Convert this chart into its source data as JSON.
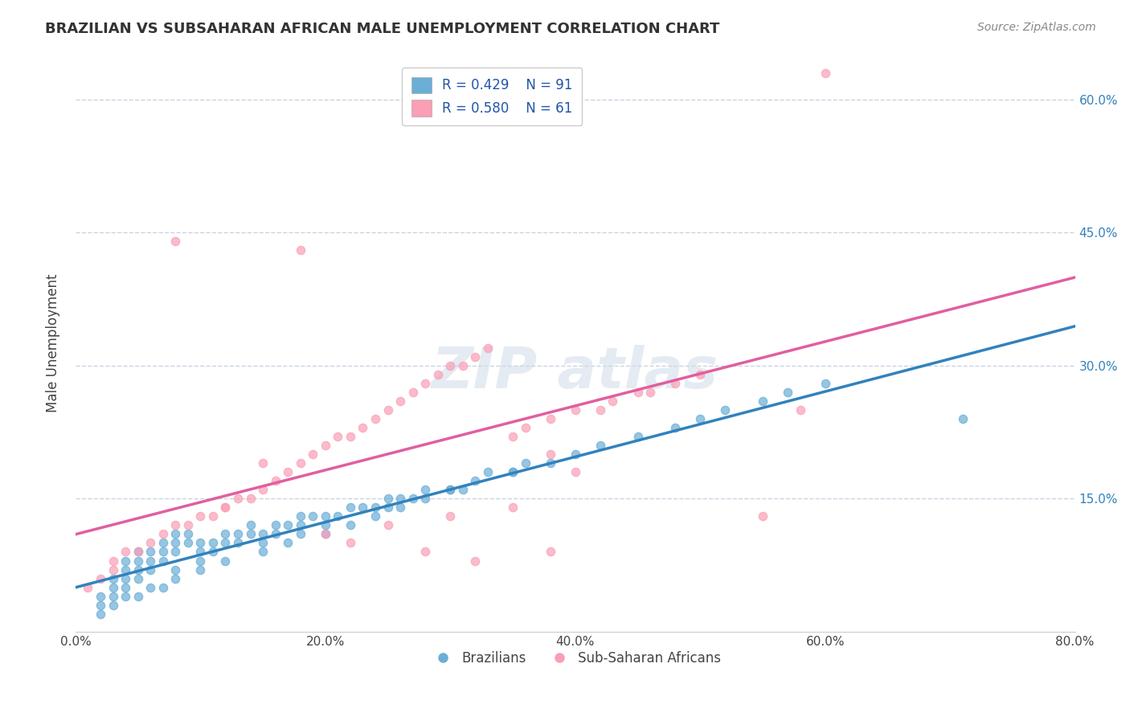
{
  "title": "BRAZILIAN VS SUBSAHARAN AFRICAN MALE UNEMPLOYMENT CORRELATION CHART",
  "source": "Source: ZipAtlas.com",
  "xlabel": "",
  "ylabel": "Male Unemployment",
  "xlim": [
    0.0,
    0.8
  ],
  "ylim": [
    0.0,
    0.65
  ],
  "xticks": [
    0.0,
    0.2,
    0.4,
    0.6,
    0.8
  ],
  "xticklabels": [
    "0.0%",
    "20.0%",
    "40.0%",
    "60.0%",
    "80.0%"
  ],
  "yticks_right": [
    0.15,
    0.3,
    0.45,
    0.6
  ],
  "ytick_right_labels": [
    "15.0%",
    "30.0%",
    "45.0%",
    "60.0%"
  ],
  "legend_r1": "R = 0.429",
  "legend_n1": "N = 91",
  "legend_r2": "R = 0.580",
  "legend_n2": "N = 61",
  "blue_color": "#6baed6",
  "pink_color": "#fa9fb5",
  "blue_line_color": "#3182bd",
  "pink_line_color": "#e05fa0",
  "watermark": "ZIPatlas",
  "background_color": "#ffffff",
  "grid_color": "#c8d4e3",
  "title_color": "#333333",
  "blue_scatter_x": [
    0.02,
    0.02,
    0.03,
    0.03,
    0.03,
    0.04,
    0.04,
    0.04,
    0.04,
    0.05,
    0.05,
    0.05,
    0.05,
    0.06,
    0.06,
    0.06,
    0.07,
    0.07,
    0.07,
    0.08,
    0.08,
    0.08,
    0.09,
    0.09,
    0.1,
    0.1,
    0.1,
    0.11,
    0.11,
    0.12,
    0.12,
    0.13,
    0.13,
    0.14,
    0.14,
    0.15,
    0.15,
    0.16,
    0.16,
    0.17,
    0.18,
    0.18,
    0.19,
    0.2,
    0.2,
    0.21,
    0.22,
    0.23,
    0.24,
    0.25,
    0.25,
    0.26,
    0.27,
    0.28,
    0.3,
    0.31,
    0.32,
    0.33,
    0.35,
    0.36,
    0.38,
    0.4,
    0.42,
    0.45,
    0.48,
    0.5,
    0.52,
    0.55,
    0.57,
    0.6,
    0.02,
    0.03,
    0.04,
    0.05,
    0.06,
    0.07,
    0.08,
    0.08,
    0.1,
    0.12,
    0.15,
    0.17,
    0.18,
    0.2,
    0.22,
    0.24,
    0.26,
    0.28,
    0.3,
    0.35,
    0.71
  ],
  "blue_scatter_y": [
    0.03,
    0.04,
    0.05,
    0.06,
    0.04,
    0.05,
    0.06,
    0.07,
    0.08,
    0.06,
    0.07,
    0.08,
    0.09,
    0.07,
    0.08,
    0.09,
    0.08,
    0.09,
    0.1,
    0.09,
    0.1,
    0.11,
    0.1,
    0.11,
    0.08,
    0.09,
    0.1,
    0.09,
    0.1,
    0.1,
    0.11,
    0.1,
    0.11,
    0.11,
    0.12,
    0.1,
    0.11,
    0.11,
    0.12,
    0.12,
    0.12,
    0.13,
    0.13,
    0.12,
    0.13,
    0.13,
    0.14,
    0.14,
    0.14,
    0.14,
    0.15,
    0.15,
    0.15,
    0.16,
    0.16,
    0.16,
    0.17,
    0.18,
    0.18,
    0.19,
    0.19,
    0.2,
    0.21,
    0.22,
    0.23,
    0.24,
    0.25,
    0.26,
    0.27,
    0.28,
    0.02,
    0.03,
    0.04,
    0.04,
    0.05,
    0.05,
    0.06,
    0.07,
    0.07,
    0.08,
    0.09,
    0.1,
    0.11,
    0.11,
    0.12,
    0.13,
    0.14,
    0.15,
    0.16,
    0.18,
    0.24
  ],
  "pink_scatter_x": [
    0.01,
    0.02,
    0.03,
    0.03,
    0.04,
    0.05,
    0.06,
    0.07,
    0.08,
    0.09,
    0.1,
    0.11,
    0.12,
    0.13,
    0.14,
    0.15,
    0.16,
    0.17,
    0.18,
    0.19,
    0.2,
    0.21,
    0.22,
    0.23,
    0.24,
    0.25,
    0.26,
    0.27,
    0.28,
    0.29,
    0.3,
    0.31,
    0.32,
    0.33,
    0.35,
    0.36,
    0.38,
    0.4,
    0.43,
    0.45,
    0.48,
    0.5,
    0.55,
    0.58,
    0.6,
    0.38,
    0.4,
    0.15,
    0.2,
    0.25,
    0.3,
    0.35,
    0.18,
    0.22,
    0.28,
    0.32,
    0.38,
    0.12,
    0.08,
    0.42,
    0.46
  ],
  "pink_scatter_y": [
    0.05,
    0.06,
    0.07,
    0.08,
    0.09,
    0.09,
    0.1,
    0.11,
    0.12,
    0.12,
    0.13,
    0.13,
    0.14,
    0.15,
    0.15,
    0.16,
    0.17,
    0.18,
    0.19,
    0.2,
    0.21,
    0.22,
    0.22,
    0.23,
    0.24,
    0.25,
    0.26,
    0.27,
    0.28,
    0.29,
    0.3,
    0.3,
    0.31,
    0.32,
    0.22,
    0.23,
    0.24,
    0.25,
    0.26,
    0.27,
    0.28,
    0.29,
    0.13,
    0.25,
    0.63,
    0.2,
    0.18,
    0.19,
    0.11,
    0.12,
    0.13,
    0.14,
    0.43,
    0.1,
    0.09,
    0.08,
    0.09,
    0.14,
    0.44,
    0.25,
    0.27
  ]
}
